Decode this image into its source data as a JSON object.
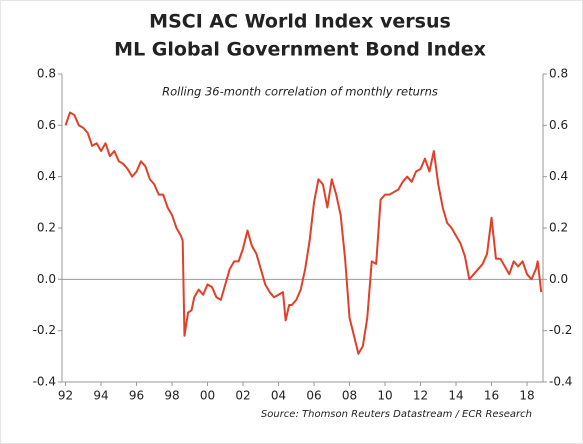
{
  "chart_data": {
    "type": "line",
    "title": [
      "MSCI AC World Index versus",
      "ML Global Government Bond Index"
    ],
    "subtitle": "Rolling 36-month correlation of monthly returns",
    "source": "Source: Thomson Reuters Datastream / ECR Research",
    "color": "#e0402a",
    "x": [
      1992.0,
      1992.25,
      1992.5,
      1992.75,
      1993.0,
      1993.25,
      1993.5,
      1993.75,
      1994.0,
      1994.25,
      1994.5,
      1994.75,
      1995.0,
      1995.25,
      1995.5,
      1995.75,
      1996.0,
      1996.25,
      1996.5,
      1996.75,
      1997.0,
      1997.25,
      1997.5,
      1997.75,
      1998.0,
      1998.25,
      1998.5,
      1998.6,
      1998.7,
      1998.9,
      1999.1,
      1999.25,
      1999.5,
      1999.75,
      2000.0,
      2000.25,
      2000.5,
      2000.75,
      2001.0,
      2001.25,
      2001.5,
      2001.75,
      2002.0,
      2002.25,
      2002.5,
      2002.75,
      2003.0,
      2003.25,
      2003.5,
      2003.75,
      2004.0,
      2004.25,
      2004.4,
      2004.6,
      2004.75,
      2005.0,
      2005.25,
      2005.5,
      2005.75,
      2006.0,
      2006.25,
      2006.5,
      2006.75,
      2007.0,
      2007.25,
      2007.5,
      2007.75,
      2008.0,
      2008.25,
      2008.5,
      2008.75,
      2009.0,
      2009.25,
      2009.5,
      2009.75,
      2010.0,
      2010.25,
      2010.5,
      2010.75,
      2011.0,
      2011.25,
      2011.5,
      2011.75,
      2012.0,
      2012.25,
      2012.5,
      2012.75,
      2013.0,
      2013.25,
      2013.5,
      2013.75,
      2014.0,
      2014.25,
      2014.5,
      2014.75,
      2015.0,
      2015.25,
      2015.5,
      2015.75,
      2016.0,
      2016.25,
      2016.5,
      2016.75,
      2017.0,
      2017.25,
      2017.5,
      2017.75,
      2018.0,
      2018.25,
      2018.5,
      2018.6,
      2018.8
    ],
    "values": [
      0.6,
      0.65,
      0.64,
      0.6,
      0.59,
      0.57,
      0.52,
      0.53,
      0.5,
      0.53,
      0.48,
      0.5,
      0.46,
      0.45,
      0.43,
      0.4,
      0.42,
      0.46,
      0.44,
      0.39,
      0.37,
      0.33,
      0.33,
      0.28,
      0.25,
      0.2,
      0.17,
      0.15,
      -0.22,
      -0.13,
      -0.12,
      -0.07,
      -0.04,
      -0.06,
      -0.02,
      -0.03,
      -0.07,
      -0.08,
      -0.02,
      0.04,
      0.07,
      0.07,
      0.12,
      0.19,
      0.13,
      0.1,
      0.04,
      -0.02,
      -0.05,
      -0.07,
      -0.06,
      -0.05,
      -0.16,
      -0.1,
      -0.1,
      -0.08,
      -0.04,
      0.04,
      0.15,
      0.3,
      0.39,
      0.37,
      0.28,
      0.39,
      0.33,
      0.25,
      0.08,
      -0.15,
      -0.22,
      -0.29,
      -0.26,
      -0.15,
      0.07,
      0.06,
      0.31,
      0.33,
      0.33,
      0.34,
      0.35,
      0.38,
      0.4,
      0.38,
      0.42,
      0.43,
      0.47,
      0.42,
      0.5,
      0.37,
      0.28,
      0.22,
      0.2,
      0.17,
      0.14,
      0.09,
      0.0,
      0.02,
      0.04,
      0.06,
      0.1,
      0.24,
      0.08,
      0.08,
      0.05,
      0.02,
      0.07,
      0.05,
      0.07,
      0.02,
      0.0,
      0.04,
      0.07,
      -0.05
    ],
    "xlim": [
      1991.8,
      2018.9
    ],
    "xticks": [
      {
        "value": 1992,
        "label": "92"
      },
      {
        "value": 1994,
        "label": "94"
      },
      {
        "value": 1996,
        "label": "96"
      },
      {
        "value": 1998,
        "label": "98"
      },
      {
        "value": 2000,
        "label": "00"
      },
      {
        "value": 2002,
        "label": "02"
      },
      {
        "value": 2004,
        "label": "04"
      },
      {
        "value": 2006,
        "label": "06"
      },
      {
        "value": 2008,
        "label": "08"
      },
      {
        "value": 2010,
        "label": "10"
      },
      {
        "value": 2012,
        "label": "12"
      },
      {
        "value": 2014,
        "label": "14"
      },
      {
        "value": 2016,
        "label": "16"
      },
      {
        "value": 2018,
        "label": "18"
      }
    ],
    "ylim": [
      -0.4,
      0.8
    ],
    "yticks": [
      -0.4,
      -0.2,
      {
        "value": 0,
        "label": "0.0"
      },
      0.2,
      0.4,
      0.6,
      0.8
    ],
    "y2lim": [
      -0.4,
      0.8
    ],
    "y2ticks": [
      -0.4,
      -0.2,
      {
        "value": 0,
        "label": "0.0"
      },
      0.2,
      0.4,
      0.6,
      0.8
    ]
  }
}
